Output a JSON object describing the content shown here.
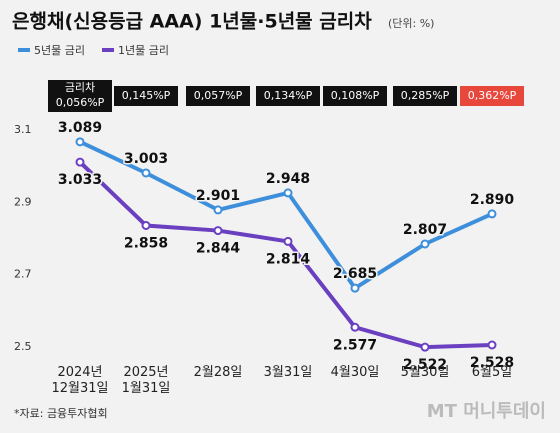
{
  "chart_data": {
    "type": "line",
    "title": "은행채(신용등급 AAA) 1년물·5년물 금리차",
    "unit": "(단위: %)",
    "categories": [
      "2024년\n12월31일",
      "2025년\n1월31일",
      "2월28일",
      "3월31일",
      "4월30일",
      "5월30일",
      "6월5일"
    ],
    "series": [
      {
        "name": "5년물 금리",
        "color": "#3d8fdb",
        "values": [
          3.089,
          3.003,
          2.901,
          2.948,
          2.685,
          2.807,
          2.89
        ],
        "value_labels": [
          "3.089",
          "3.003",
          "2.901",
          "2.948",
          "2.685",
          "2.807",
          "2.890"
        ]
      },
      {
        "name": "1년물 금리",
        "color": "#6a3fc0",
        "values": [
          3.033,
          2.858,
          2.844,
          2.814,
          2.577,
          2.522,
          2.528
        ],
        "value_labels": [
          "3.033",
          "2.858",
          "2.844",
          "2.814",
          "2.577",
          "2.522",
          "2.528"
        ]
      }
    ],
    "spread": {
      "label": "금리차",
      "values": [
        0.056,
        0.145,
        0.057,
        0.134,
        0.108,
        0.285,
        0.362
      ],
      "value_labels": [
        "0,056%P",
        "0,145%P",
        "0,057%P",
        "0,134%P",
        "0,108%P",
        "0,285%P",
        "0,362%P"
      ],
      "colors": [
        "#111",
        "#111",
        "#111",
        "#111",
        "#111",
        "#111",
        "#e8473c"
      ]
    },
    "ylim": [
      2.47,
      3.13
    ],
    "yticks": [
      3.1,
      2.9,
      2.7,
      2.5
    ],
    "source": "*자료: 금융투자협회",
    "logo": "MT 머니투데이"
  }
}
